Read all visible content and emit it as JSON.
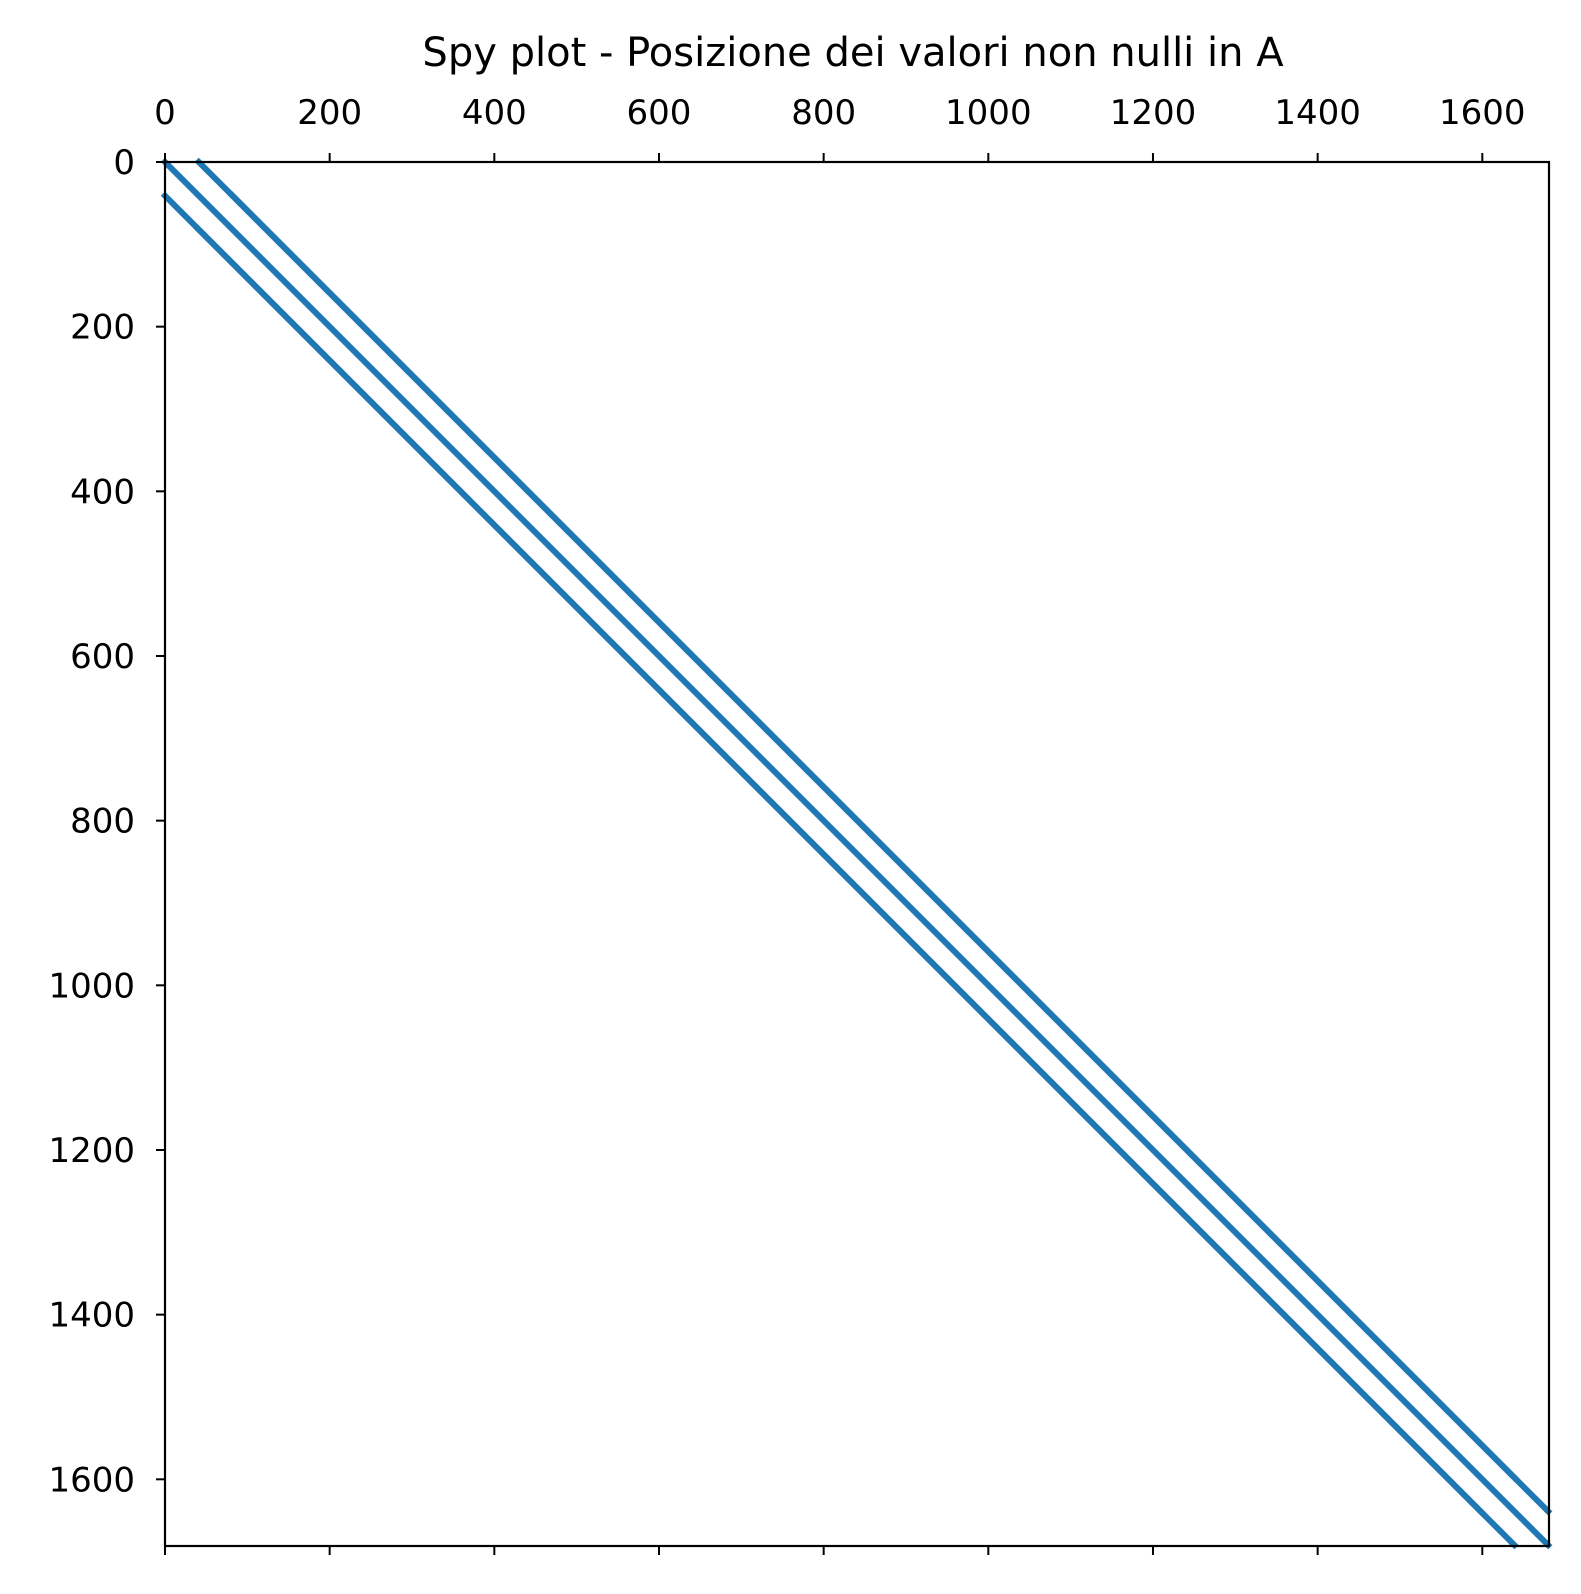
{
  "chart_data": {
    "type": "scatter",
    "title": "Spy plot - Posizione dei valori non nulli in A",
    "xlabel": "",
    "ylabel": "",
    "xlim": [
      0,
      1681
    ],
    "ylim": [
      1681,
      0
    ],
    "x_ticks": [
      0,
      200,
      400,
      600,
      800,
      1000,
      1200,
      1400,
      1600
    ],
    "y_ticks": [
      0,
      200,
      400,
      600,
      800,
      1000,
      1200,
      1400,
      1600
    ],
    "grid": false,
    "x_ticks_position": "top",
    "marker_color": "#1f77b4",
    "diagonals": [
      {
        "start": [
          41,
          0
        ],
        "end": [
          1680,
          1639
        ]
      },
      {
        "start": [
          0,
          0
        ],
        "end": [
          1680,
          1680
        ]
      },
      {
        "start": [
          0,
          41
        ],
        "end": [
          1639,
          1680
        ]
      },
      {
        "start": [
          81,
          40
        ],
        "end": [
          1640,
          1599
        ]
      },
      {
        "start": [
          40,
          81
        ],
        "end": [
          1599,
          1640
        ]
      }
    ]
  }
}
